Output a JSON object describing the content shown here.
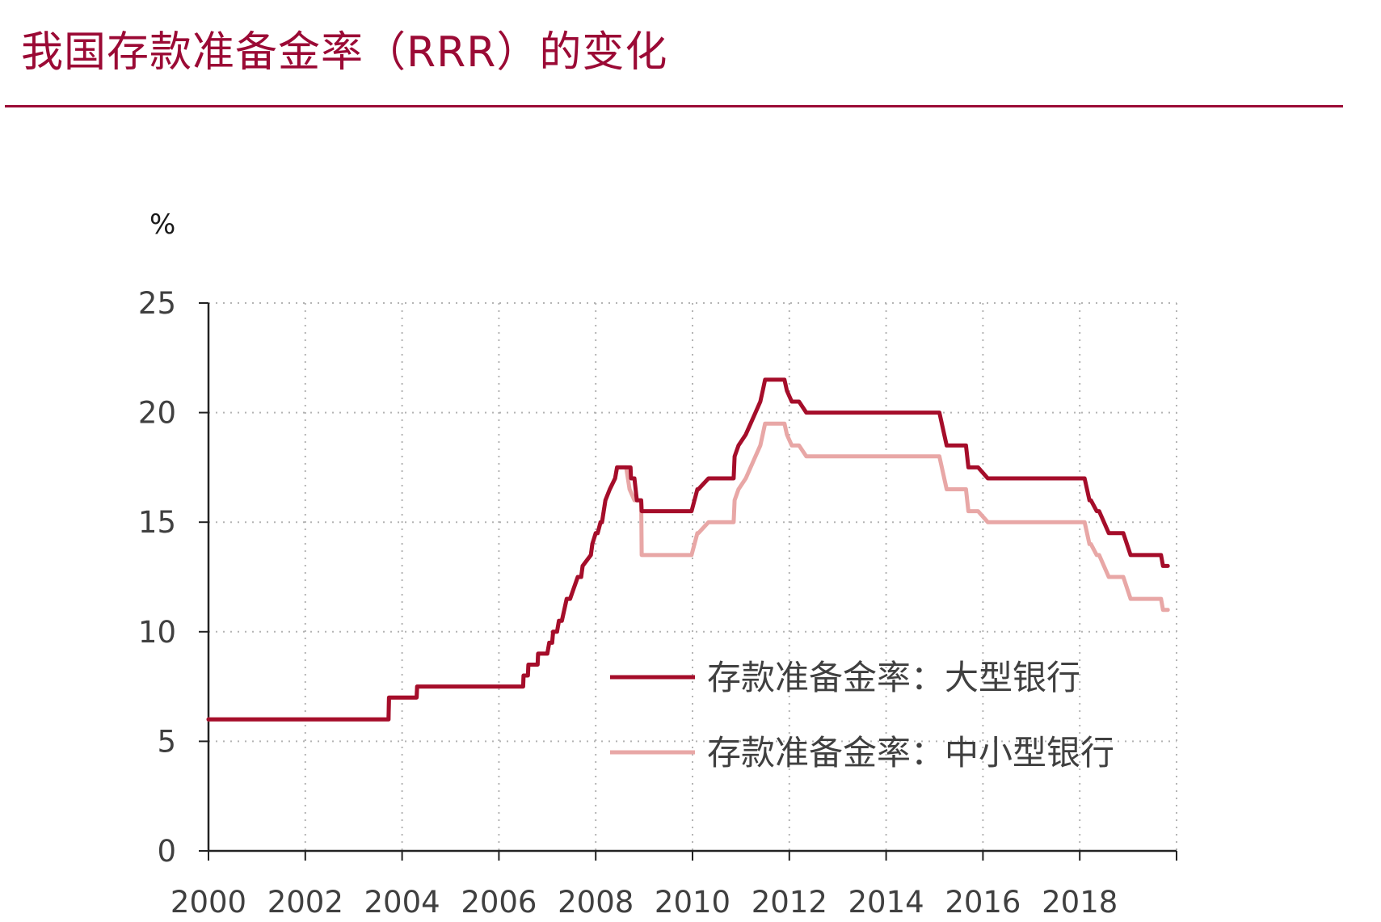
{
  "title": "我国存款准备金率（RRR）的变化",
  "colors": {
    "accent": "#9b0a35",
    "large_banks": "#a50d2a",
    "small_banks": "#e8a7a6"
  },
  "chart_data": {
    "type": "line",
    "title": "我国存款准备金率（RRR）的变化",
    "ylabel": "%",
    "xlabel": "",
    "ylim": [
      0,
      25
    ],
    "xlim": [
      2000,
      2020
    ],
    "x_ticks": [
      "2000",
      "2002",
      "2004",
      "2006",
      "2008",
      "2010",
      "2012",
      "2014",
      "2016",
      "2018"
    ],
    "y_ticks": [
      "0",
      "5",
      "10",
      "15",
      "20",
      "25"
    ],
    "grid": true,
    "legend": "lower-right",
    "series": [
      {
        "name": "存款准备金率：大型银行",
        "x": [
          2000,
          2003.72,
          2003.73,
          2004.3,
          2004.31,
          2006.5,
          2006.51,
          2006.6,
          2006.61,
          2006.8,
          2006.81,
          2007.0,
          2007.04,
          2007.1,
          2007.12,
          2007.2,
          2007.24,
          2007.3,
          2007.35,
          2007.4,
          2007.47,
          2007.55,
          2007.63,
          2007.7,
          2007.73,
          2007.9,
          2007.93,
          2008.0,
          2008.04,
          2008.1,
          2008.13,
          2008.2,
          2008.29,
          2008.4,
          2008.44,
          2008.63,
          2008.64,
          2008.72,
          2008.73,
          2008.8,
          2008.85,
          2008.94,
          2008.95,
          2009.98,
          2010.04,
          2010.1,
          2010.12,
          2010.33,
          2010.34,
          2010.85,
          2010.87,
          2010.95,
          2011.1,
          2011.2,
          2011.3,
          2011.4,
          2011.45,
          2011.5,
          2011.9,
          2011.95,
          2012.05,
          2012.1,
          2012.2,
          2012.35,
          2012.4,
          2015.07,
          2015.1,
          2015.15,
          2015.25,
          2015.3,
          2015.65,
          2015.7,
          2015.9,
          2016.1,
          2016.17,
          2018.1,
          2018.2,
          2018.23,
          2018.35,
          2018.4,
          2018.6,
          2018.65,
          2018.9,
          2019.05,
          2019.07,
          2019.68,
          2019.72,
          2019.82
        ],
        "values": [
          6,
          6,
          7,
          7,
          7.5,
          7.5,
          8,
          8,
          8.5,
          8.5,
          9,
          9,
          9.5,
          9.5,
          10,
          10,
          10.5,
          10.5,
          11,
          11.5,
          11.5,
          12,
          12.5,
          12.5,
          13,
          13.5,
          14,
          14.5,
          14.5,
          15,
          15,
          16,
          16.5,
          17,
          17.5,
          17.5,
          17.5,
          17.5,
          17,
          17,
          16,
          16,
          15.5,
          15.5,
          16,
          16.5,
          16.5,
          17,
          17,
          17,
          18,
          18.5,
          19,
          19.5,
          20,
          20.5,
          21,
          21.5,
          21.5,
          21,
          20.5,
          20.5,
          20.5,
          20,
          20,
          20,
          20,
          19.5,
          18.5,
          18.5,
          18.5,
          17.5,
          17.5,
          17,
          17,
          17,
          16,
          16,
          15.5,
          15.5,
          14.5,
          14.5,
          14.5,
          13.5,
          13.5,
          13.5,
          13,
          13
        ]
      },
      {
        "name": "存款准备金率：中小型银行",
        "x": [
          2000,
          2003.72,
          2003.73,
          2004.3,
          2004.31,
          2006.5,
          2006.51,
          2006.6,
          2006.61,
          2006.8,
          2006.81,
          2007.0,
          2007.04,
          2007.1,
          2007.12,
          2007.2,
          2007.24,
          2007.3,
          2007.35,
          2007.4,
          2007.47,
          2007.55,
          2007.63,
          2007.7,
          2007.73,
          2007.9,
          2007.93,
          2008.0,
          2008.04,
          2008.1,
          2008.13,
          2008.2,
          2008.29,
          2008.4,
          2008.44,
          2008.63,
          2008.7,
          2008.8,
          2008.85,
          2008.94,
          2008.95,
          2009.98,
          2010.04,
          2010.1,
          2010.12,
          2010.33,
          2010.34,
          2010.85,
          2010.87,
          2010.95,
          2011.1,
          2011.2,
          2011.3,
          2011.4,
          2011.45,
          2011.5,
          2011.9,
          2011.95,
          2012.05,
          2012.1,
          2012.2,
          2012.35,
          2012.4,
          2015.07,
          2015.1,
          2015.15,
          2015.25,
          2015.3,
          2015.65,
          2015.7,
          2015.9,
          2016.1,
          2016.17,
          2018.1,
          2018.2,
          2018.23,
          2018.35,
          2018.4,
          2018.6,
          2018.65,
          2018.9,
          2019.05,
          2019.07,
          2019.68,
          2019.72,
          2019.82
        ],
        "values": [
          6,
          6,
          7,
          7,
          7.5,
          7.5,
          8,
          8,
          8.5,
          8.5,
          9,
          9,
          9.5,
          9.5,
          10,
          10,
          10.5,
          10.5,
          11,
          11.5,
          11.5,
          12,
          12.5,
          12.5,
          13,
          13.5,
          14,
          14.5,
          14.5,
          15,
          15,
          16,
          16.5,
          17,
          17.5,
          17.5,
          16.5,
          16,
          16,
          16,
          13.5,
          13.5,
          14,
          14.5,
          14.5,
          15,
          15,
          15,
          16,
          16.5,
          17,
          17.5,
          18,
          18.5,
          19,
          19.5,
          19.5,
          19,
          18.5,
          18.5,
          18.5,
          18,
          18,
          18,
          18,
          17.5,
          16.5,
          16.5,
          16.5,
          15.5,
          15.5,
          15,
          15,
          15,
          14,
          14,
          13.5,
          13.5,
          12.5,
          12.5,
          12.5,
          11.5,
          11.5,
          11.5,
          11,
          11
        ]
      }
    ]
  }
}
